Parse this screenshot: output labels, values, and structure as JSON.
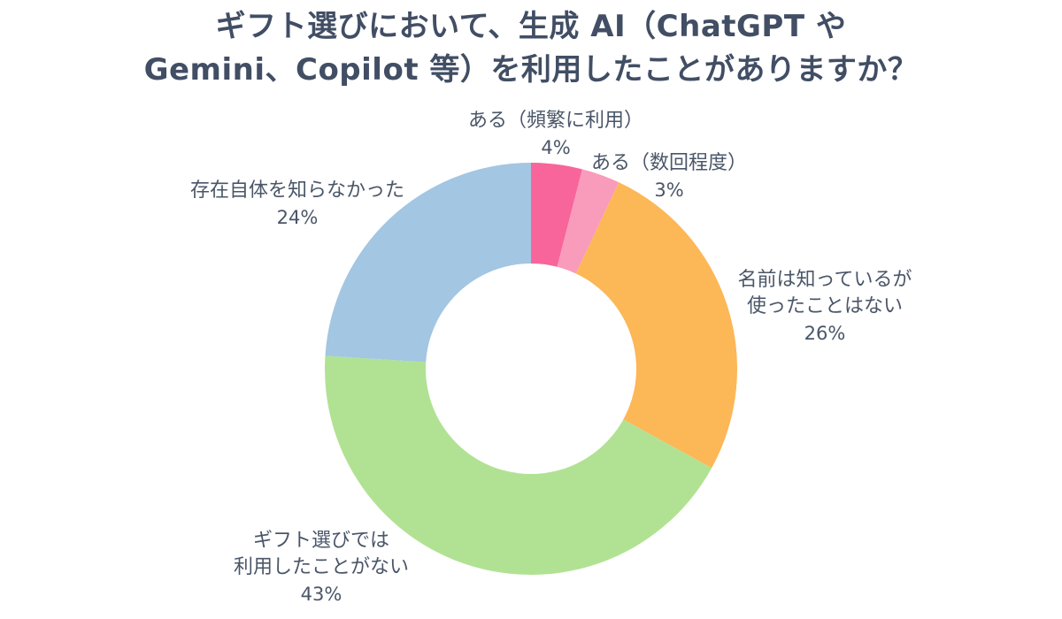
{
  "page": {
    "background": "#FFFFFF",
    "title_color": "#414E64",
    "label_color": "#4A5668"
  },
  "title": {
    "lines": [
      "ギフト選びにおいて、生成 AI（ChatGPT や",
      "Gemini、Copilot 等）を利用したことがありますか？"
    ]
  },
  "chart_data": {
    "type": "pie",
    "subtype": "donut",
    "title": "ギフト選びにおいて、生成 AI（ChatGPT や Gemini、Copilot 等）を利用したことがありますか？",
    "unit": "%",
    "direction": "clockwise",
    "start_angle_deg": 0,
    "inner_radius_ratio": 0.51,
    "legend_position": "none",
    "segments": [
      {
        "label": "ある（頻繁に利用）",
        "label_lines": [
          "ある（頻繁に利用）"
        ],
        "value": 4,
        "value_text": "4%",
        "color": "#F8659A"
      },
      {
        "label": "ある（数回程度）",
        "label_lines": [
          "ある（数回程度）"
        ],
        "value": 3,
        "value_text": "3%",
        "color": "#F99BBB"
      },
      {
        "label": "名前は知っているが使ったことはない",
        "label_lines": [
          "名前は知っているが",
          "使ったことはない"
        ],
        "value": 26,
        "value_text": "26%",
        "color": "#FCB757"
      },
      {
        "label": "ギフト選びでは利用したことがない",
        "label_lines": [
          "ギフト選びでは",
          "利用したことがない"
        ],
        "value": 43,
        "value_text": "43%",
        "color": "#B1E293"
      },
      {
        "label": "存在自体を知らなかった",
        "label_lines": [
          "存在自体を知らなかった"
        ],
        "value": 24,
        "value_text": "24%",
        "color": "#A3C6E2"
      }
    ]
  }
}
